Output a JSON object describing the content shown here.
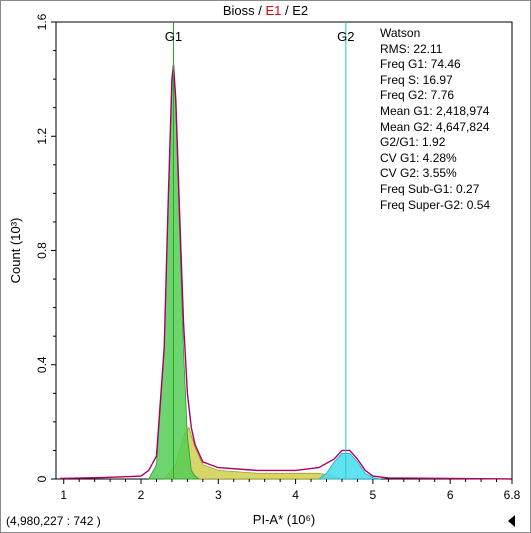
{
  "title": {
    "part1": "Bioss",
    "sep1": " / ",
    "part2": "E1",
    "sep2": " / ",
    "part3": "E2"
  },
  "colors": {
    "g1_fill": "#55cc55",
    "s_fill": "#cfcf50",
    "g2_fill": "#44ddee",
    "fit_line": "#aa0066",
    "cursor": "#22aa22",
    "g2_cursor": "#22cccc"
  },
  "readout": "(4,980,227  : 742 )",
  "stats": [
    "Watson",
    "RMS: 22.11",
    "Freq G1: 74.46",
    "Freq S: 16.97",
    "Freq G2: 7.76",
    "Mean G1: 2,418,974",
    "Mean G2: 4,647,824",
    "G2/G1: 1.92",
    "CV G1: 4.28%",
    "CV G2: 3.55%",
    "Freq Sub-G1: 0.27",
    "Freq Super-G2: 0.54"
  ],
  "chart_data": {
    "type": "area",
    "xlabel": "PI-A* (10⁶)",
    "ylabel": "Count (10³)",
    "xlim": [
      0.9,
      6.8
    ],
    "ylim": [
      0,
      1.6
    ],
    "x_ticks": [
      1,
      2,
      3,
      4,
      5,
      6,
      6.8
    ],
    "x_tick_labels": [
      "1",
      "2",
      "3",
      "4",
      "5",
      "6",
      "6.8"
    ],
    "y_ticks": [
      0,
      0.4,
      0.8,
      1.2,
      1.6
    ],
    "y_tick_labels": [
      "0",
      "0.4",
      "0.8",
      "1.2",
      "1.6"
    ],
    "markers": [
      {
        "label": "G1",
        "x": 2.42
      },
      {
        "label": "G2",
        "x": 4.65
      }
    ],
    "series": [
      {
        "name": "G1",
        "x": [
          2.1,
          2.2,
          2.3,
          2.35,
          2.4,
          2.42,
          2.45,
          2.5,
          2.55,
          2.6,
          2.65,
          2.7,
          2.75
        ],
        "y": [
          0,
          0.05,
          0.45,
          0.95,
          1.38,
          1.43,
          1.3,
          0.85,
          0.45,
          0.15,
          0.03,
          0.01,
          0
        ]
      },
      {
        "name": "S",
        "x": [
          2.3,
          2.45,
          2.55,
          2.62,
          2.7,
          2.8,
          3.0,
          3.5,
          4.0,
          4.3,
          4.5,
          4.6
        ],
        "y": [
          0,
          0.05,
          0.15,
          0.18,
          0.11,
          0.05,
          0.03,
          0.02,
          0.02,
          0.02,
          0.01,
          0
        ]
      },
      {
        "name": "G2",
        "x": [
          4.3,
          4.4,
          4.5,
          4.6,
          4.65,
          4.7,
          4.8,
          4.9,
          5.0,
          5.1
        ],
        "y": [
          0,
          0.02,
          0.06,
          0.09,
          0.09,
          0.09,
          0.06,
          0.02,
          0.005,
          0
        ]
      },
      {
        "name": "Fit",
        "x": [
          0.95,
          1.5,
          2.0,
          2.1,
          2.2,
          2.3,
          2.35,
          2.4,
          2.42,
          2.45,
          2.5,
          2.55,
          2.6,
          2.65,
          2.7,
          2.8,
          3.0,
          3.5,
          4.0,
          4.3,
          4.5,
          4.6,
          4.65,
          4.7,
          4.8,
          4.9,
          5.0,
          5.2,
          6.0,
          6.8
        ],
        "y": [
          0.002,
          0.005,
          0.01,
          0.03,
          0.08,
          0.46,
          0.96,
          1.4,
          1.45,
          1.33,
          0.92,
          0.55,
          0.3,
          0.18,
          0.12,
          0.06,
          0.04,
          0.03,
          0.03,
          0.04,
          0.07,
          0.1,
          0.1,
          0.1,
          0.07,
          0.03,
          0.01,
          0.004,
          0.002,
          0
        ]
      }
    ],
    "grid": false,
    "legend": "none"
  }
}
